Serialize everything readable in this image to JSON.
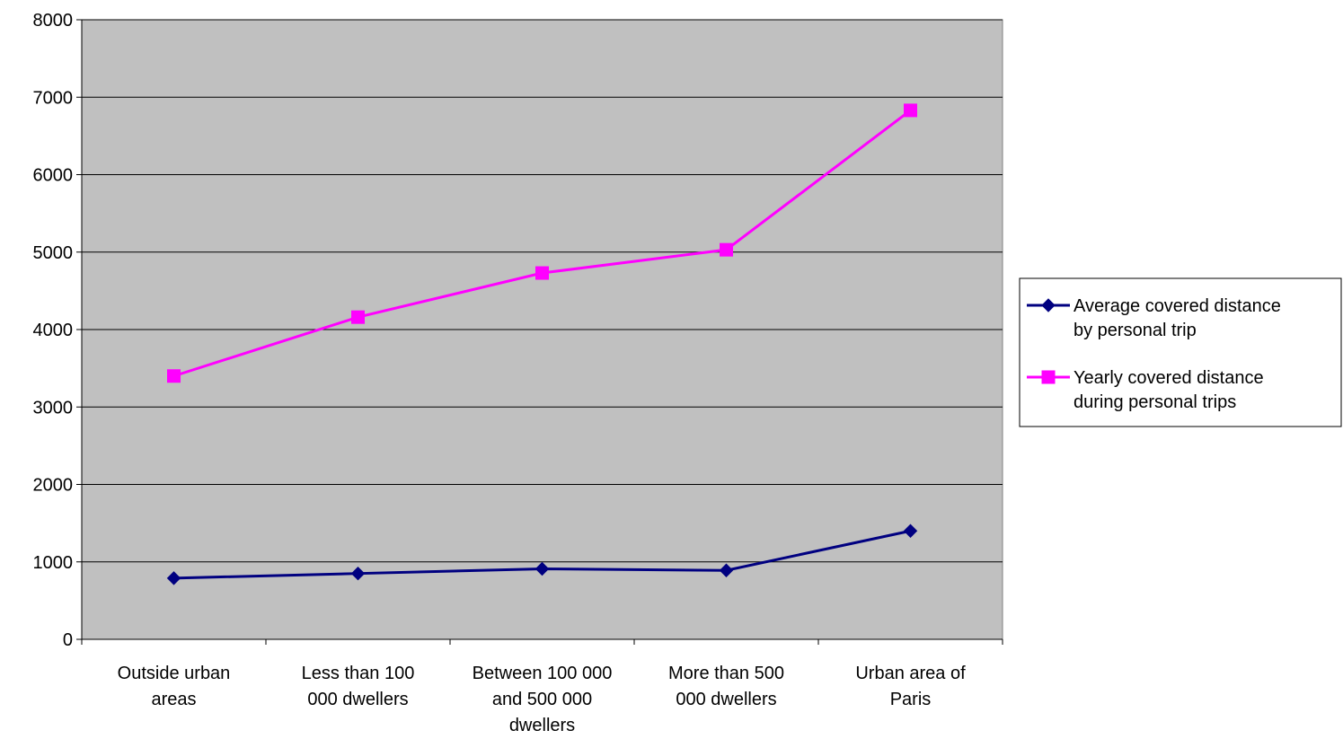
{
  "chart_data": {
    "type": "line",
    "title": "",
    "xlabel": "",
    "ylabel": "",
    "categories": [
      [
        "Outside urban",
        "areas"
      ],
      [
        "Less than 100",
        "000 dwellers"
      ],
      [
        "Between 100 000",
        "and 500 000",
        "dwellers"
      ],
      [
        "More than 500",
        "000 dwellers"
      ],
      [
        "Urban area of",
        "Paris"
      ]
    ],
    "ylim": [
      0,
      8000
    ],
    "yticks": [
      0,
      1000,
      2000,
      3000,
      4000,
      5000,
      6000,
      7000,
      8000
    ],
    "grid": true,
    "legend_position": "right",
    "plot_background": "#c0c0c0",
    "series": [
      {
        "name": [
          "Average covered distance",
          "by personal trip"
        ],
        "values": [
          790,
          850,
          910,
          890,
          1400
        ],
        "color": "#000080",
        "marker": "diamond"
      },
      {
        "name": [
          "Yearly covered distance",
          "during personal trips"
        ],
        "values": [
          3400,
          4160,
          4730,
          5030,
          6830
        ],
        "color": "#ff00ff",
        "marker": "square"
      }
    ]
  }
}
